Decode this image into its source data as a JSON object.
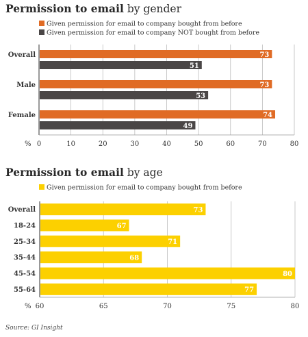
{
  "chart_data": [
    {
      "type": "bar",
      "orientation": "horizontal",
      "title_bold": "Permission to email",
      "title_rest": " by gender",
      "axis_prefix": "%",
      "categories": [
        "Overall",
        "Male",
        "Female"
      ],
      "series": [
        {
          "name": "Given permission for email to company bought from before",
          "color": "#e06b25",
          "values": [
            73,
            73,
            74
          ]
        },
        {
          "name": "Given permission for email to company NOT bought from before",
          "color": "#4a4646",
          "values": [
            51,
            53,
            49
          ]
        }
      ],
      "xlim": [
        0,
        80
      ],
      "xticks": [
        0,
        10,
        20,
        30,
        40,
        50,
        60,
        70,
        80
      ],
      "grid": true,
      "legend": "top-left"
    },
    {
      "type": "bar",
      "orientation": "horizontal",
      "title_bold": "Permission to email",
      "title_rest": " by age",
      "axis_prefix": "%",
      "categories": [
        "Overall",
        "18-24",
        "25-34",
        "35-44",
        "45-54",
        "55-64"
      ],
      "series": [
        {
          "name": "Given permission for email to company bought from before",
          "color": "#fcd000",
          "values": [
            73,
            67,
            71,
            68,
            80,
            77
          ]
        }
      ],
      "xlim": [
        60,
        80
      ],
      "xticks": [
        60,
        65,
        70,
        75,
        80
      ],
      "grid": true,
      "legend": "top-left"
    }
  ],
  "source": "Source: GI Insight"
}
